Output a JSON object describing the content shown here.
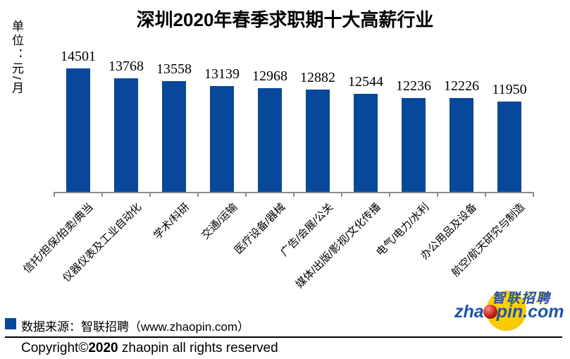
{
  "title": "深圳2020年春季求职期十大高薪行业",
  "unit_label": "单位：元/月",
  "chart_data": {
    "type": "bar",
    "title": "深圳2020年春季求职期十大高薪行业",
    "categories": [
      "信托/担保/拍卖/典当",
      "仪器仪表及工业自动化",
      "学术/科研",
      "交通/运输",
      "医疗设备/器械",
      "广告/会展/公关",
      "媒体/出版/影视/文化传播",
      "电气/电力/水利",
      "办公用品及设备",
      "航空/航天研究与制造"
    ],
    "values": [
      14501,
      13768,
      13558,
      13139,
      12968,
      12882,
      12544,
      12236,
      12226,
      11950
    ],
    "xlabel": "",
    "ylabel": "单位：元/月",
    "ylim": [
      5000,
      15000
    ],
    "grid": false,
    "legend_position": "none",
    "data_labels": true,
    "bar_color": "#07489A",
    "axis_color": "#8C8C8C",
    "label_rotation_deg": 45
  },
  "legend": {
    "marker_color": "#07489A",
    "label": "数据来源：智联招聘（www.zhaopin.com）"
  },
  "footer": {
    "copyright_prefix": "Copyright©",
    "copyright_year": "2020",
    "copyright_suffix": " zhaopin all rights reserved"
  },
  "logo": {
    "brand_cn": "智联招聘",
    "brand_left": "zha",
    "brand_right": "pin.com",
    "brand_full": "zhaopin.com",
    "blue": "#1E55A6",
    "yellow": "#FFD400",
    "red": "#C42015"
  }
}
